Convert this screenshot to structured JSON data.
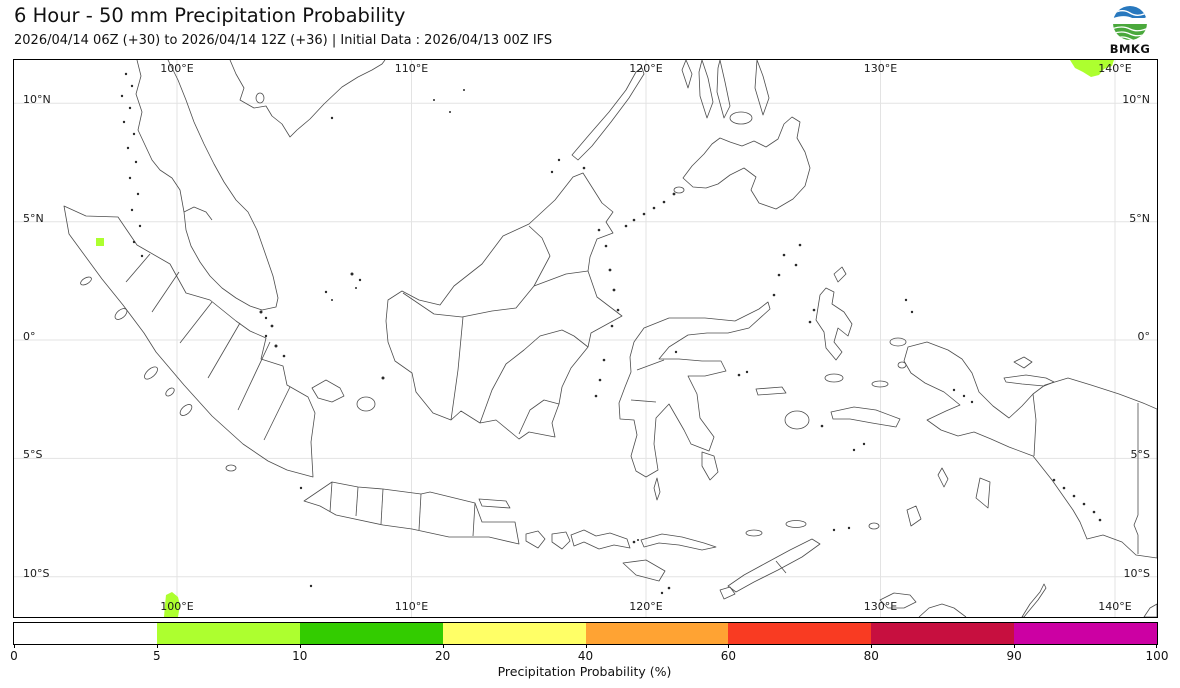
{
  "header": {
    "title": "6 Hour - 50 mm Precipitation Probability",
    "subtitle": "2026/04/14 06Z (+30) to 2026/04/14 12Z (+36) | Initial Data : 2026/04/13 00Z IFS",
    "logo_text": "BMKG"
  },
  "map": {
    "lon_ticks": [
      {
        "label": "100°E",
        "lon": 100
      },
      {
        "label": "110°E",
        "lon": 110
      },
      {
        "label": "120°E",
        "lon": 120
      },
      {
        "label": "130°E",
        "lon": 130
      },
      {
        "label": "140°E",
        "lon": 140
      }
    ],
    "lat_ticks": [
      {
        "label": "10°N",
        "lat": 10
      },
      {
        "label": "5°N",
        "lat": 5
      },
      {
        "label": "0°",
        "lat": 0
      },
      {
        "label": "5°S",
        "lat": -5
      },
      {
        "label": "10°S",
        "lat": -10
      }
    ],
    "precip_color": "#adff2f",
    "precip_areas": [
      {
        "area": "top edge near 140°E (north of Papua)",
        "probability": "5-10%"
      },
      {
        "area": "central Aceh, Sumatra",
        "probability": "5-10%"
      },
      {
        "area": "bottom edge near 100°E (southwest of Sumatra)",
        "probability": "5-10%"
      }
    ]
  },
  "colorbar": {
    "label": "Precipitation Probability (%)",
    "tick_labels": [
      "0",
      "5",
      "10",
      "20",
      "40",
      "60",
      "80",
      "90",
      "100"
    ],
    "segment_colors": [
      "#ffffff",
      "#adff2f",
      "#33cc00",
      "#ffff66",
      "#ffa333",
      "#f93b22",
      "#c70f3f",
      "#cc00a3"
    ]
  },
  "logo_colors": {
    "blue": "#2878be",
    "dark_blue": "#1a5da8",
    "green": "#4aa83c",
    "dark_green": "#2e8a2a"
  }
}
